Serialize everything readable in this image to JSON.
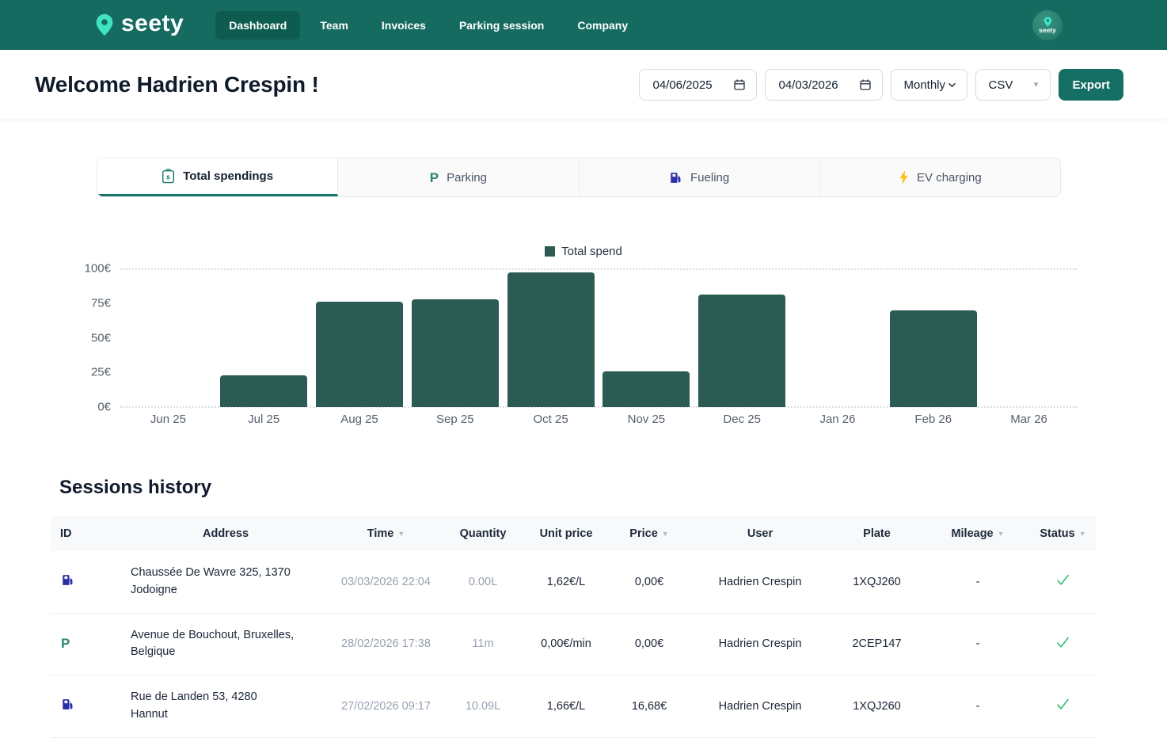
{
  "brand": {
    "name": "seety"
  },
  "nav": {
    "items": [
      {
        "label": "Dashboard",
        "active": true
      },
      {
        "label": "Team",
        "active": false
      },
      {
        "label": "Invoices",
        "active": false
      },
      {
        "label": "Parking session",
        "active": false
      },
      {
        "label": "Company",
        "active": false
      }
    ],
    "avatar_label": "seety"
  },
  "header": {
    "title": "Welcome Hadrien Crespin !",
    "date_from": "04/06/2025",
    "date_to": "04/03/2026",
    "period_selected": "Monthly",
    "format_selected": "CSV",
    "export_label": "Export"
  },
  "tabs": [
    {
      "label": "Total spendings",
      "icon": "receipt-icon",
      "active": true
    },
    {
      "label": "Parking",
      "icon": "parking-icon",
      "active": false
    },
    {
      "label": "Fueling",
      "icon": "fuel-pump-icon",
      "active": false
    },
    {
      "label": "EV charging",
      "icon": "lightning-icon",
      "active": false
    }
  ],
  "chart_data": {
    "type": "bar",
    "title": "",
    "legend": [
      "Total spend"
    ],
    "legend_position": "top-center",
    "categories": [
      "Jun 25",
      "Jul 25",
      "Aug 25",
      "Sep 25",
      "Oct 25",
      "Nov 25",
      "Dec 25",
      "Jan 26",
      "Feb 26",
      "Mar 26"
    ],
    "values": [
      0,
      23,
      76,
      78,
      97,
      26,
      81,
      0,
      70,
      0
    ],
    "xlabel": "",
    "ylabel": "",
    "ylim": [
      0,
      100
    ],
    "yticks": [
      "100€",
      "75€",
      "50€",
      "25€",
      "0€"
    ],
    "grid": "dotted horizontal lines at 0 and 100 only",
    "bar_color": "#2B5B53"
  },
  "sessions": {
    "title": "Sessions history",
    "columns": [
      {
        "label": "ID",
        "sortable": false
      },
      {
        "label": "Address",
        "sortable": false
      },
      {
        "label": "Time",
        "sortable": true
      },
      {
        "label": "Quantity",
        "sortable": false
      },
      {
        "label": "Unit price",
        "sortable": false
      },
      {
        "label": "Price",
        "sortable": true
      },
      {
        "label": "User",
        "sortable": false
      },
      {
        "label": "Plate",
        "sortable": false
      },
      {
        "label": "Mileage",
        "sortable": true
      },
      {
        "label": "Status",
        "sortable": true
      }
    ],
    "rows": [
      {
        "type": "fuel",
        "address": "Chaussée De Wavre 325, 1370 Jodoigne",
        "time": "03/03/2026 22:04",
        "quantity": "0.00L",
        "unit_price": "1,62€/L",
        "price": "0,00€",
        "user": "Hadrien Crespin",
        "plate": "1XQJ260",
        "mileage": "-",
        "status": "success"
      },
      {
        "type": "parking",
        "address": "Avenue de Bouchout, Bruxelles, Belgique",
        "time": "28/02/2026 17:38",
        "quantity": "11m",
        "unit_price": "0,00€/min",
        "price": "0,00€",
        "user": "Hadrien Crespin",
        "plate": "2CEP147",
        "mileage": "-",
        "status": "success"
      },
      {
        "type": "fuel",
        "address": "Rue de Landen 53, 4280 Hannut",
        "time": "27/02/2026 09:17",
        "quantity": "10.09L",
        "unit_price": "1,66€/L",
        "price": "16,68€",
        "user": "Hadrien Crespin",
        "plate": "1XQJ260",
        "mileage": "-",
        "status": "success"
      }
    ]
  },
  "colors": {
    "navbar": "#156B60",
    "nav_active": "#0E5B50",
    "accent_teal": "#17756A",
    "bar": "#2B5B53",
    "success_green": "#2FBF71",
    "fuel_icon_blue": "#2B2FA8",
    "bolt_yellow": "#FFC21D",
    "muted_text": "#98A1B0"
  }
}
